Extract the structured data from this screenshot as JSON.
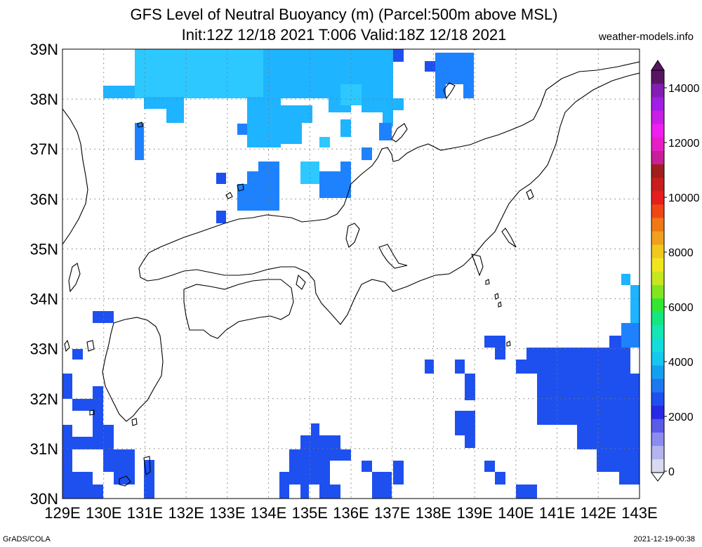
{
  "title": {
    "line1": "GFS Level of Neutral Buoyancy (m) (Parcel:500m above MSL)",
    "line2": "Init:12Z 12/18 2021 T:006 Valid:18Z 12/18 2021"
  },
  "credit": "weather-models.info",
  "footer": {
    "left": "GrADS/COLA",
    "right": "2021-12-19-00:38"
  },
  "axes": {
    "lat_labels": [
      "39N",
      "38N",
      "37N",
      "36N",
      "35N",
      "34N",
      "33N",
      "32N",
      "31N",
      "30N"
    ],
    "lon_labels": [
      "129E",
      "130E",
      "131E",
      "132E",
      "133E",
      "134E",
      "135E",
      "136E",
      "137E",
      "138E",
      "139E",
      "140E",
      "141E",
      "142E",
      "143E"
    ]
  },
  "colorbar": {
    "labels": [
      "14000",
      "12000",
      "10000",
      "8000",
      "6000",
      "4000",
      "2000",
      "0"
    ],
    "colors": [
      "#d9d9f0",
      "#b4b4f0",
      "#8c8cf0",
      "#5a5aeb",
      "#2828e6",
      "#1e50f0",
      "#1e78f0",
      "#14a0f0",
      "#14c8f0",
      "#14dcdc",
      "#14e6b4",
      "#14e682",
      "#32e632",
      "#82e61e",
      "#c8e61e",
      "#f0e61e",
      "#f0c81e",
      "#f0a01e",
      "#f07814",
      "#f04614",
      "#e61e1e",
      "#c81e1e",
      "#a01e1e",
      "#c81e96",
      "#e61ec8",
      "#f01ef0",
      "#c81ee6",
      "#a01ee6",
      "#821eb4",
      "#5a1464"
    ]
  },
  "map_layers": {
    "projection": "lat-lon",
    "extent": {
      "lon": [
        129,
        143
      ],
      "lat": [
        30,
        39
      ]
    },
    "grid": "dotted",
    "colors": {
      "cyan_light": "#2dc8ff",
      "cyan": "#1eb4ff",
      "blue_mid": "#1e82ff",
      "blue": "#1e50f0",
      "blue_dark": "#2832e6"
    }
  }
}
